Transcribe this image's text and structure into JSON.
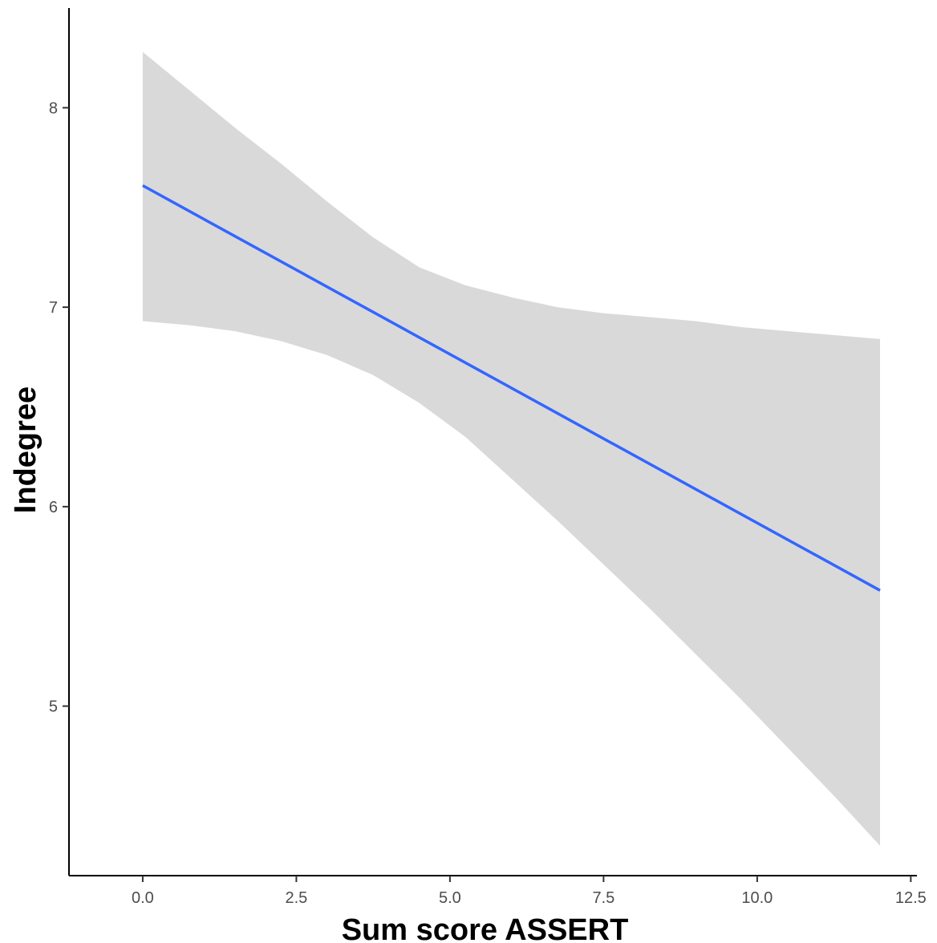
{
  "chart_data": {
    "type": "line",
    "title": "",
    "xlabel": "Sum score ASSERT",
    "ylabel": "Indegree",
    "xlim": [
      -1.2,
      12.6
    ],
    "ylim": [
      4.15,
      8.5
    ],
    "x_ticks": [
      0.0,
      2.5,
      5.0,
      7.5,
      10.0,
      12.5
    ],
    "x_tick_labels": [
      "0.0",
      "2.5",
      "5.0",
      "7.5",
      "10.0",
      "12.5"
    ],
    "y_ticks": [
      5,
      6,
      7,
      8
    ],
    "y_tick_labels": [
      "5",
      "6",
      "7",
      "8"
    ],
    "grid": false,
    "legend": "none",
    "series": [
      {
        "kind": "fitted-line",
        "color": "#3366ff",
        "x": [
          0,
          12
        ],
        "y": [
          7.61,
          5.58
        ]
      }
    ],
    "confidence_band": {
      "color": "#d9d9d9",
      "x": [
        0,
        0.75,
        1.5,
        2.25,
        3,
        3.75,
        4.5,
        5.25,
        6,
        6.75,
        7.5,
        8.25,
        9,
        9.75,
        10.5,
        11.25,
        12
      ],
      "upper": [
        8.28,
        8.09,
        7.9,
        7.72,
        7.53,
        7.35,
        7.2,
        7.11,
        7.05,
        7.0,
        6.97,
        6.95,
        6.93,
        6.9,
        6.88,
        6.86,
        6.84
      ],
      "lower": [
        6.93,
        6.91,
        6.88,
        6.83,
        6.76,
        6.66,
        6.52,
        6.35,
        6.14,
        5.93,
        5.71,
        5.49,
        5.26,
        5.03,
        4.79,
        4.55,
        4.3
      ]
    }
  }
}
